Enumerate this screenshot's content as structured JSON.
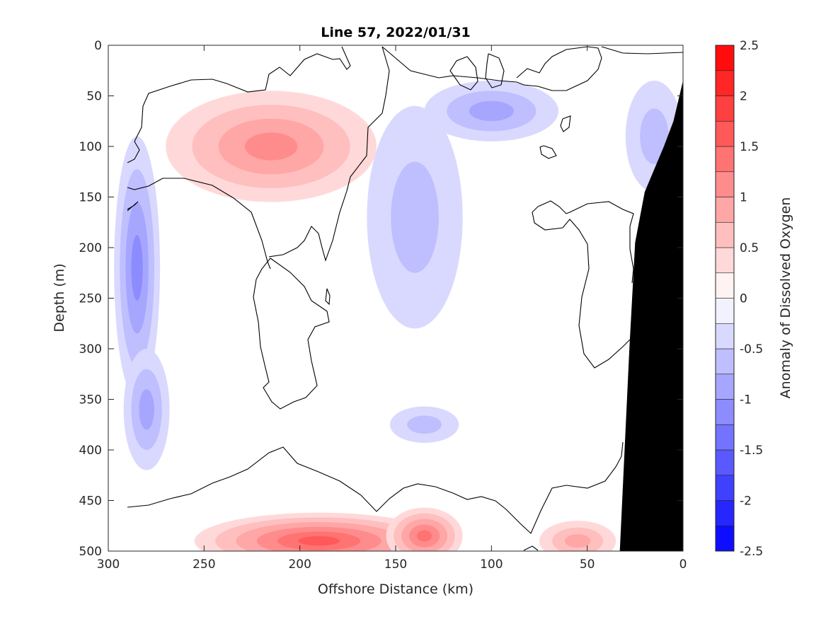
{
  "chart_data": {
    "type": "heatmap",
    "title": "Line 57, 2022/01/31",
    "xlabel": "Offshore Distance (km)",
    "ylabel": "Depth (m)",
    "colorbar_label": "Anomaly of Dissolved Oxygen",
    "xlim": [
      300,
      0
    ],
    "ylim": [
      0,
      500
    ],
    "x_reversed": true,
    "y_reversed": true,
    "x_ticks": [
      300,
      250,
      200,
      150,
      100,
      50,
      0
    ],
    "y_ticks": [
      0,
      50,
      100,
      150,
      200,
      250,
      300,
      350,
      400,
      450,
      500
    ],
    "colorbar_range": [
      -2.5,
      2.5
    ],
    "colorbar_ticks": [
      "2.5",
      "2",
      "1.5",
      "1",
      "0.5",
      "0",
      "-0.5",
      "-1",
      "-1.5",
      "-2",
      "-2.5"
    ],
    "colorbar_levels": [
      -2.5,
      -2.25,
      -2,
      -1.75,
      -1.5,
      -1.25,
      -1,
      -0.75,
      -0.5,
      -0.25,
      0,
      0.25,
      0.5,
      0.75,
      1,
      1.25,
      1.5,
      1.75,
      2,
      2.25,
      2.5
    ],
    "colors": {
      "negative_max": "#0000ff",
      "positive_max": "#ff0000",
      "zero": "#ffffff",
      "seafloor": "#000000"
    },
    "features": [
      {
        "sign": "positive",
        "x_center": 215,
        "y_center": 100,
        "peak": 1.0
      },
      {
        "sign": "positive",
        "x_center": 190,
        "y_center": 490,
        "peak": 1.5
      },
      {
        "sign": "positive",
        "x_center": 135,
        "y_center": 485,
        "peak": 1.25
      },
      {
        "sign": "positive",
        "x_center": 55,
        "y_center": 490,
        "peak": 0.75
      },
      {
        "sign": "negative",
        "x_center": 285,
        "y_center": 220,
        "peak": -1.0
      },
      {
        "sign": "negative",
        "x_center": 280,
        "y_center": 360,
        "peak": -0.75
      },
      {
        "sign": "negative",
        "x_center": 140,
        "y_center": 170,
        "peak": -0.5
      },
      {
        "sign": "negative",
        "x_center": 100,
        "y_center": 65,
        "peak": -0.75
      },
      {
        "sign": "negative",
        "x_center": 15,
        "y_center": 90,
        "peak": -0.5
      },
      {
        "sign": "negative",
        "x_center": 135,
        "y_center": 375,
        "peak": -0.5
      }
    ],
    "seafloor_profile": [
      {
        "x": 0,
        "depth": 35
      },
      {
        "x": 5,
        "depth": 75
      },
      {
        "x": 10,
        "depth": 100
      },
      {
        "x": 20,
        "depth": 145
      },
      {
        "x": 25,
        "depth": 195
      },
      {
        "x": 28,
        "depth": 300
      },
      {
        "x": 30,
        "depth": 380
      },
      {
        "x": 33,
        "depth": 500
      }
    ]
  }
}
